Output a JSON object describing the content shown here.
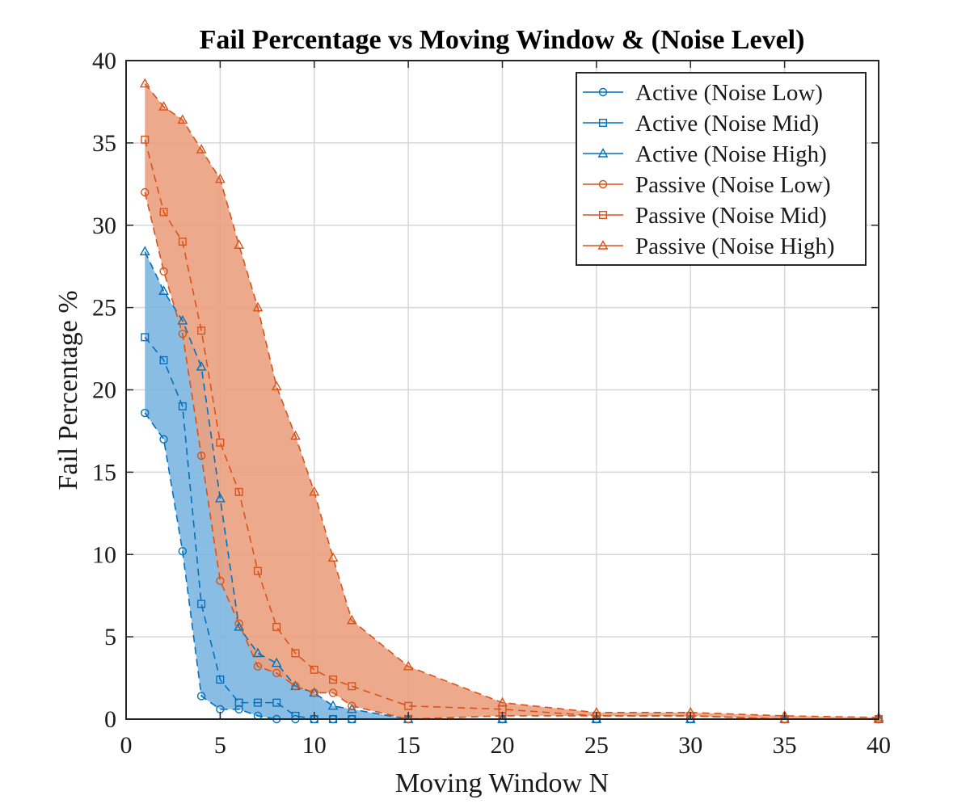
{
  "chart_data": {
    "type": "area",
    "title": "Fail Percentage vs Moving Window & (Noise Level)",
    "xlabel": "Moving Window N",
    "ylabel": "Fail Percentage %",
    "xlim": [
      0,
      40
    ],
    "ylim": [
      0,
      40
    ],
    "xticks": [
      0,
      5,
      10,
      15,
      20,
      25,
      30,
      35,
      40
    ],
    "yticks": [
      0,
      5,
      10,
      15,
      20,
      25,
      30,
      35,
      40
    ],
    "grid": true,
    "legend_position": "top-right",
    "x": [
      1,
      2,
      3,
      4,
      5,
      6,
      7,
      8,
      9,
      10,
      11,
      12,
      15,
      20,
      25,
      30,
      35,
      40
    ],
    "series": [
      {
        "name": "Active (Noise Low)",
        "group": "active",
        "marker": "circle",
        "color": "#0072BD",
        "values": [
          18.6,
          17.0,
          10.2,
          1.4,
          0.6,
          0.6,
          0.2,
          0.0,
          0.0,
          0.0,
          0.0,
          0.0,
          0.0,
          0.0,
          0.0,
          0.0,
          0.0,
          0.0
        ]
      },
      {
        "name": "Active (Noise Mid)",
        "group": "active",
        "marker": "square",
        "color": "#0072BD",
        "values": [
          23.2,
          21.8,
          19.0,
          7.0,
          2.4,
          1.0,
          1.0,
          1.0,
          0.2,
          0.0,
          0.0,
          0.0,
          0.0,
          0.0,
          0.0,
          0.0,
          0.0,
          0.0
        ]
      },
      {
        "name": "Active (Noise High)",
        "group": "active",
        "marker": "triangle",
        "color": "#0072BD",
        "values": [
          28.4,
          26.0,
          24.2,
          21.4,
          13.4,
          5.6,
          4.0,
          3.4,
          2.0,
          1.6,
          0.8,
          0.6,
          0.0,
          0.0,
          0.0,
          0.0,
          0.0,
          0.0
        ]
      },
      {
        "name": "Passive (Noise Low)",
        "group": "passive",
        "marker": "circle",
        "color": "#D95319",
        "values": [
          32.0,
          27.2,
          23.4,
          16.0,
          8.4,
          5.8,
          3.2,
          2.8,
          2.0,
          1.6,
          1.6,
          0.8,
          0.0,
          0.2,
          0.2,
          0.2,
          0.0,
          0.0
        ]
      },
      {
        "name": "Passive (Noise Mid)",
        "group": "passive",
        "marker": "square",
        "color": "#D95319",
        "values": [
          35.2,
          30.8,
          29.0,
          23.6,
          16.8,
          13.8,
          9.0,
          5.6,
          4.0,
          3.0,
          2.4,
          2.0,
          0.8,
          0.6,
          0.2,
          0.2,
          0.0,
          0.0
        ]
      },
      {
        "name": "Passive (Noise High)",
        "group": "passive",
        "marker": "triangle",
        "color": "#D95319",
        "values": [
          38.6,
          37.2,
          36.4,
          34.6,
          32.8,
          28.8,
          25.0,
          20.2,
          17.2,
          13.8,
          9.8,
          6.0,
          3.2,
          1.0,
          0.4,
          0.4,
          0.2,
          0.1
        ]
      }
    ],
    "bands": [
      {
        "group": "active",
        "lower": "Active (Noise Low)",
        "upper": "Active (Noise High)",
        "fill": "#7DB6E1"
      },
      {
        "group": "passive",
        "lower": "Passive (Noise Low)",
        "upper": "Passive (Noise High)",
        "fill": "#EAA07F"
      }
    ]
  }
}
